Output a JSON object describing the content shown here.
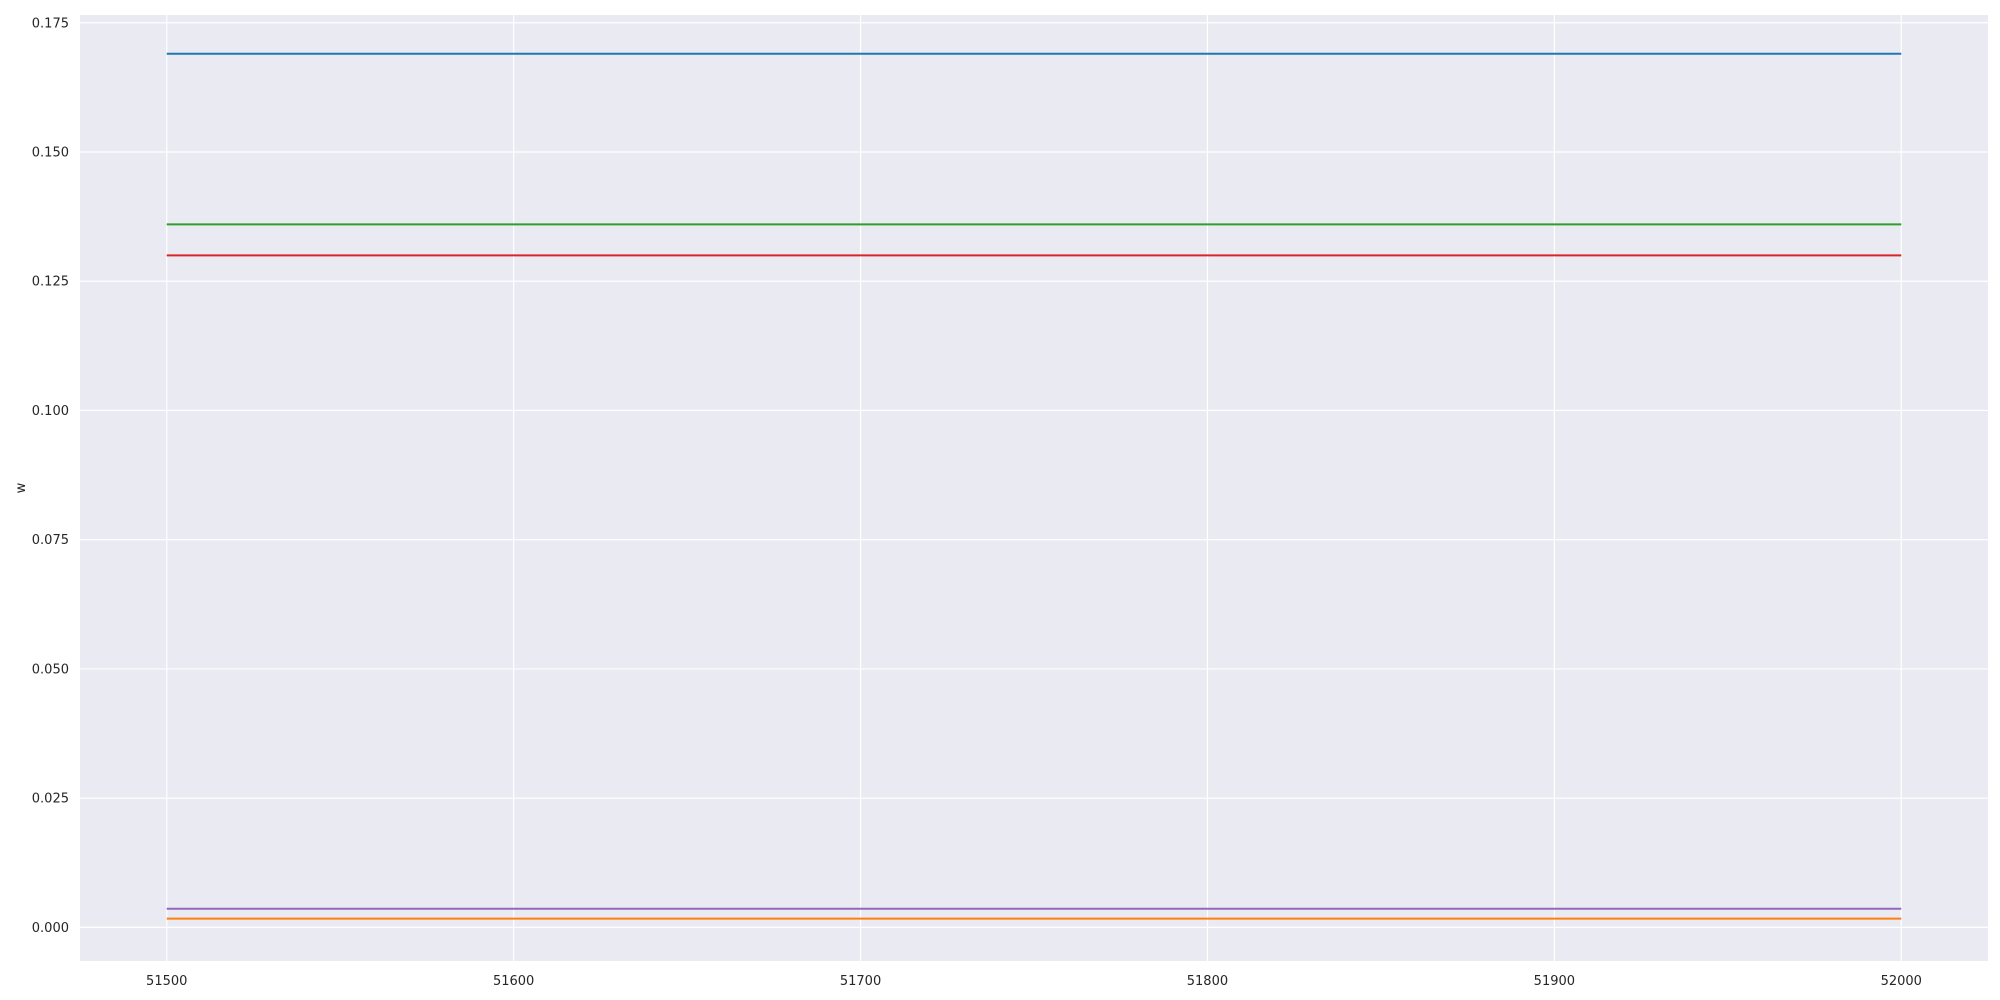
{
  "chart_data": {
    "type": "line",
    "title": "",
    "xlabel": "",
    "ylabel": "w",
    "xlim": [
      51475,
      52025
    ],
    "ylim": [
      -0.0065,
      0.1765
    ],
    "x_ticks": [
      51500,
      51600,
      51700,
      51800,
      51900,
      52000
    ],
    "x_tick_labels": [
      "51500",
      "51600",
      "51700",
      "51800",
      "51900",
      "52000"
    ],
    "y_ticks": [
      0.0,
      0.025,
      0.05,
      0.075,
      0.1,
      0.125,
      0.15,
      0.175
    ],
    "y_tick_labels": [
      "0.000",
      "0.025",
      "0.050",
      "0.075",
      "0.100",
      "0.125",
      "0.150",
      "0.175"
    ],
    "grid": true,
    "legend": false,
    "background_color": "#eaeaf2",
    "grid_color": "#ffffff",
    "series": [
      {
        "color": "#1f77b4",
        "x": [
          51500,
          52000
        ],
        "y": [
          0.169,
          0.169
        ]
      },
      {
        "color": "#ff7f0e",
        "x": [
          51500,
          52000
        ],
        "y": [
          0.0017,
          0.0017
        ]
      },
      {
        "color": "#2ca02c",
        "x": [
          51500,
          52000
        ],
        "y": [
          0.136,
          0.136
        ]
      },
      {
        "color": "#d62728",
        "x": [
          51500,
          52000
        ],
        "y": [
          0.13,
          0.13
        ]
      },
      {
        "color": "#9467bd",
        "x": [
          51500,
          52000
        ],
        "y": [
          0.0036,
          0.0036
        ]
      }
    ]
  }
}
